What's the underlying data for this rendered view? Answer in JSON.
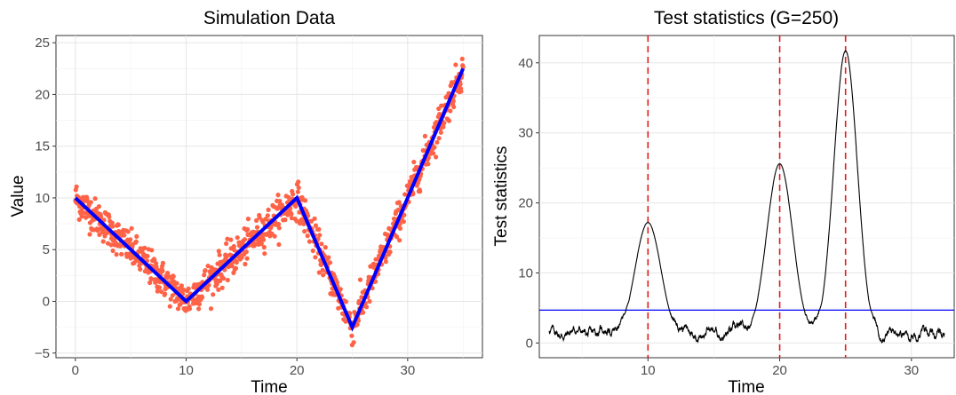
{
  "chart_data": [
    {
      "type": "scatter",
      "title": "Simulation Data",
      "xlabel": "Time",
      "ylabel": "Value",
      "xlim": [
        -1.75,
        36.75
      ],
      "ylim": [
        -5.45,
        25.7
      ],
      "x_ticks": [
        0,
        10,
        20,
        30
      ],
      "y_ticks": [
        -5,
        0,
        5,
        10,
        15,
        20,
        25
      ],
      "grid": true,
      "colors": {
        "points": "#FF6347",
        "trend": "#0000FF"
      },
      "series": [
        {
          "kind": "points",
          "description_of_generation": "noisy observations around piecewise-linear mean, t from 0 to 35 step 0.01, noise sd ~0.9",
          "x_range": [
            0,
            35
          ],
          "step": 0.01
        },
        {
          "kind": "line",
          "x": [
            0,
            10,
            20,
            25,
            35
          ],
          "y": [
            10,
            0,
            10,
            -2.5,
            22.5
          ]
        }
      ]
    },
    {
      "type": "line",
      "title": "Test statistics (G=250)",
      "xlabel": "Time",
      "ylabel": "Test statistics",
      "xlim": [
        1.75,
        33.25
      ],
      "ylim": [
        -2.1,
        43.9
      ],
      "x_ticks": [
        10,
        20,
        30
      ],
      "y_ticks": [
        0,
        10,
        20,
        30,
        40
      ],
      "grid": true,
      "colors": {
        "line": "#000000",
        "threshold": "#0000FF",
        "changepoints": "#E41A1C"
      },
      "threshold": 4.7,
      "changepoints": [
        10,
        20,
        25
      ],
      "peaks": [
        {
          "x": 10,
          "y": 17.2
        },
        {
          "x": 20,
          "y": 25.6
        },
        {
          "x": 25,
          "y": 41.7
        }
      ],
      "x_range": [
        2.5,
        32.5
      ],
      "baseline": 1.5
    }
  ]
}
